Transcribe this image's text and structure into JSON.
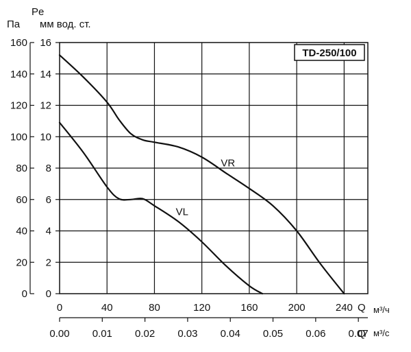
{
  "chart_data": {
    "type": "line",
    "title": "TD-250/100",
    "axis_label_pa": "Па",
    "axis_label_pe": "Pe",
    "axis_label_mm": "мм вод. ст.",
    "x_label_q": "Q",
    "x_unit_m3h": "м³/ч",
    "x_unit_m3s": "м³/с",
    "xlim": [
      0,
      260
    ],
    "ylim_mm": [
      0,
      16
    ],
    "y_ticks_pa": [
      "160",
      "140",
      "120",
      "100",
      "80",
      "60",
      "40",
      "20",
      "0"
    ],
    "y_ticks_mm": [
      "16",
      "14",
      "12",
      "10",
      "8",
      "6",
      "4",
      "2",
      "0"
    ],
    "x_ticks_m3h": [
      "0",
      "40",
      "80",
      "120",
      "160",
      "200",
      "240"
    ],
    "x_ticks_m3s": [
      "0.00",
      "0.01",
      "0.02",
      "0.03",
      "0.04",
      "0.05",
      "0.06",
      "0.07"
    ],
    "x_ticks_m3s_values": [
      0,
      0.01,
      0.02,
      0.03,
      0.04,
      0.05,
      0.06,
      0.07
    ],
    "grid": true,
    "series": [
      {
        "name": "VR",
        "x": [
          0,
          20,
          40,
          50,
          60,
          70,
          80,
          100,
          120,
          140,
          160,
          180,
          200,
          220,
          240
        ],
        "y": [
          15.2,
          13.8,
          12.2,
          11.1,
          10.2,
          9.8,
          9.65,
          9.35,
          8.7,
          7.7,
          6.7,
          5.6,
          4.0,
          1.9,
          0
        ]
      },
      {
        "name": "VL",
        "x": [
          0,
          20,
          40,
          50,
          60,
          70,
          80,
          100,
          120,
          140,
          160,
          171
        ],
        "y": [
          10.9,
          9.0,
          6.8,
          6.05,
          6.0,
          6.05,
          5.6,
          4.6,
          3.3,
          1.8,
          0.5,
          0
        ]
      }
    ],
    "series_label_positions": {
      "VR": [
        136,
        8.1
      ],
      "VL": [
        98,
        5.0
      ]
    }
  }
}
